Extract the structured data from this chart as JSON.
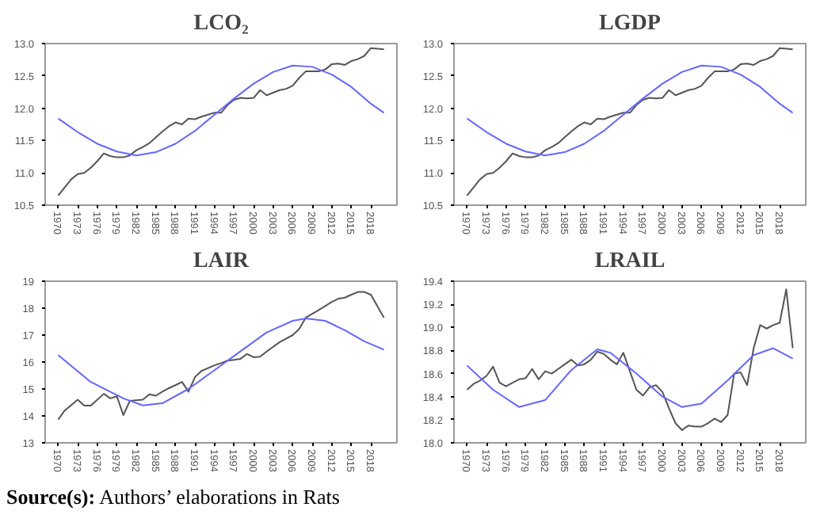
{
  "chart_data": [
    {
      "type": "line",
      "title": "LCO₂",
      "xlim": [
        1968,
        2022
      ],
      "ylim": [
        10.5,
        13.0
      ],
      "xticks": [
        1970,
        1973,
        1976,
        1979,
        1982,
        1985,
        1988,
        1991,
        1994,
        1997,
        2000,
        2003,
        2006,
        2009,
        2012,
        2015,
        2018
      ],
      "yticks": [
        {
          "value": 10.5,
          "label": "10.5"
        },
        {
          "value": 11.0,
          "label": "11.0"
        },
        {
          "value": 11.5,
          "label": "11.5"
        },
        {
          "value": 12.0,
          "label": "12.0"
        },
        {
          "value": 12.5,
          "label": "12.5"
        },
        {
          "value": 13.0,
          "label": "13.0"
        }
      ],
      "grid": false,
      "series": [
        {
          "color": "#555555",
          "x": [
            1970,
            1972,
            1973,
            1974,
            1975,
            1976,
            1977,
            1978,
            1979,
            1980,
            1981,
            1982,
            1983,
            1984,
            1985,
            1986,
            1987,
            1988,
            1989,
            1990,
            1991,
            1992,
            1993,
            1994,
            1995,
            1996,
            1997,
            1998,
            1999,
            2000,
            2001,
            2002,
            2003,
            2004,
            2005,
            2006,
            2007,
            2008,
            2009,
            2010,
            2011,
            2012,
            2013,
            2014,
            2015,
            2016,
            2017,
            2018,
            2019,
            2020
          ],
          "values": [
            10.65,
            10.9,
            10.98,
            11.0,
            11.08,
            11.18,
            11.3,
            11.26,
            11.24,
            11.24,
            11.27,
            11.35,
            11.4,
            11.46,
            11.55,
            11.64,
            11.72,
            11.78,
            11.75,
            11.84,
            11.83,
            11.87,
            11.9,
            11.93,
            11.93,
            12.05,
            12.13,
            12.16,
            12.15,
            12.16,
            12.28,
            12.2,
            12.24,
            12.28,
            12.3,
            12.35,
            12.47,
            12.57,
            12.57,
            12.57,
            12.6,
            12.68,
            12.69,
            12.67,
            12.73,
            12.76,
            12.81,
            12.93,
            12.92,
            12.91
          ]
        },
        {
          "color": "#6666ff",
          "x": [
            1970,
            1973,
            1976,
            1979,
            1982,
            1985,
            1988,
            1991,
            1994,
            1997,
            2000,
            2003,
            2006,
            2009,
            2012,
            2015,
            2018,
            2020
          ],
          "values": [
            11.84,
            11.63,
            11.45,
            11.33,
            11.27,
            11.32,
            11.45,
            11.65,
            11.9,
            12.15,
            12.38,
            12.56,
            12.66,
            12.64,
            12.52,
            12.33,
            12.07,
            11.93
          ]
        }
      ]
    },
    {
      "type": "line",
      "title": "LGDP",
      "xlim": [
        1968,
        2022
      ],
      "ylim": [
        10.5,
        13.0
      ],
      "xticks": [
        1970,
        1973,
        1976,
        1979,
        1982,
        1985,
        1988,
        1991,
        1994,
        1997,
        2000,
        2003,
        2006,
        2009,
        2012,
        2015,
        2018
      ],
      "yticks": [
        {
          "value": 10.5,
          "label": "10.5"
        },
        {
          "value": 11.0,
          "label": "11.0"
        },
        {
          "value": 11.5,
          "label": "11.5"
        },
        {
          "value": 12.0,
          "label": "12.0"
        },
        {
          "value": 12.5,
          "label": "12.5"
        },
        {
          "value": 13.0,
          "label": "13.0"
        }
      ],
      "grid": false,
      "series": [
        {
          "color": "#555555",
          "x": [
            1970,
            1972,
            1973,
            1974,
            1975,
            1976,
            1977,
            1978,
            1979,
            1980,
            1981,
            1982,
            1983,
            1984,
            1985,
            1986,
            1987,
            1988,
            1989,
            1990,
            1991,
            1992,
            1993,
            1994,
            1995,
            1996,
            1997,
            1998,
            1999,
            2000,
            2001,
            2002,
            2003,
            2004,
            2005,
            2006,
            2007,
            2008,
            2009,
            2010,
            2011,
            2012,
            2013,
            2014,
            2015,
            2016,
            2017,
            2018,
            2019,
            2020
          ],
          "values": [
            10.65,
            10.9,
            10.98,
            11.0,
            11.08,
            11.18,
            11.3,
            11.26,
            11.24,
            11.24,
            11.27,
            11.35,
            11.4,
            11.46,
            11.55,
            11.64,
            11.72,
            11.78,
            11.75,
            11.84,
            11.83,
            11.87,
            11.9,
            11.93,
            11.93,
            12.05,
            12.13,
            12.16,
            12.15,
            12.16,
            12.28,
            12.2,
            12.24,
            12.28,
            12.3,
            12.35,
            12.47,
            12.57,
            12.57,
            12.57,
            12.6,
            12.68,
            12.69,
            12.67,
            12.73,
            12.76,
            12.81,
            12.93,
            12.92,
            12.91
          ]
        },
        {
          "color": "#6666ff",
          "x": [
            1970,
            1973,
            1976,
            1979,
            1982,
            1985,
            1988,
            1991,
            1994,
            1997,
            2000,
            2003,
            2006,
            2009,
            2012,
            2015,
            2018,
            2020
          ],
          "values": [
            11.84,
            11.63,
            11.45,
            11.33,
            11.27,
            11.32,
            11.45,
            11.65,
            11.9,
            12.15,
            12.38,
            12.56,
            12.66,
            12.64,
            12.52,
            12.33,
            12.07,
            11.93
          ]
        }
      ]
    },
    {
      "type": "line",
      "title": "LAIR",
      "xlim": [
        1968,
        2022
      ],
      "ylim": [
        13,
        19
      ],
      "xticks": [
        1970,
        1973,
        1976,
        1979,
        1982,
        1985,
        1988,
        1991,
        1994,
        1997,
        2000,
        2003,
        2006,
        2009,
        2012,
        2015,
        2018
      ],
      "yticks": [
        13,
        14,
        15,
        16,
        17,
        18,
        19
      ],
      "grid": false,
      "series": [
        {
          "color": "#555555",
          "x": [
            1970,
            1971,
            1973,
            1974,
            1975,
            1977,
            1978,
            1979,
            1980,
            1981,
            1983,
            1984,
            1985,
            1986,
            1987,
            1988,
            1989,
            1990,
            1991,
            1992,
            1994,
            1995,
            1996,
            1997,
            1998,
            1999,
            2000,
            2001,
            2002,
            2004,
            2006,
            2007,
            2008,
            2010,
            2012,
            2013,
            2014,
            2015,
            2016,
            2017,
            2018,
            2020
          ],
          "values": [
            13.86,
            14.2,
            14.6,
            14.38,
            14.38,
            14.82,
            14.65,
            14.73,
            14.03,
            14.56,
            14.6,
            14.8,
            14.75,
            14.9,
            15.03,
            15.14,
            15.26,
            14.9,
            15.44,
            15.67,
            15.88,
            15.96,
            16.05,
            16.08,
            16.12,
            16.3,
            16.18,
            16.2,
            16.39,
            16.74,
            17.0,
            17.23,
            17.65,
            17.93,
            18.23,
            18.35,
            18.39,
            18.5,
            18.6,
            18.6,
            18.5,
            17.65
          ]
        },
        {
          "color": "#6666ff",
          "x": [
            1970,
            1975,
            1980,
            1983,
            1986,
            1990,
            1994,
            1998,
            2002,
            2006,
            2008,
            2011,
            2014,
            2017,
            2020
          ],
          "values": [
            16.26,
            15.26,
            14.65,
            14.39,
            14.47,
            15.0,
            15.7,
            16.4,
            17.1,
            17.53,
            17.62,
            17.53,
            17.18,
            16.77,
            16.46
          ]
        }
      ]
    },
    {
      "type": "line",
      "title": "LRAIL",
      "xlim": [
        1968,
        2022
      ],
      "ylim": [
        18.0,
        19.4
      ],
      "xticks": [
        1970,
        1973,
        1976,
        1979,
        1982,
        1985,
        1988,
        1991,
        1994,
        1997,
        2000,
        2003,
        2006,
        2009,
        2012,
        2015,
        2018
      ],
      "yticks": [
        {
          "value": 18.0,
          "label": "18.0"
        },
        {
          "value": 18.2,
          "label": "18.2"
        },
        {
          "value": 18.4,
          "label": "18.4"
        },
        {
          "value": 18.6,
          "label": "18.6"
        },
        {
          "value": 18.8,
          "label": "18.8"
        },
        {
          "value": 19.0,
          "label": "19.0"
        },
        {
          "value": 19.2,
          "label": "19.2"
        },
        {
          "value": 19.4,
          "label": "19.4"
        }
      ],
      "grid": false,
      "annotations": [
        "Source(s): Authors’ elaborations in Rats"
      ],
      "series": [
        {
          "color": "#555555",
          "x": [
            1970,
            1971,
            1972,
            1973,
            1974,
            1975,
            1976,
            1977,
            1978,
            1979,
            1980,
            1981,
            1982,
            1983,
            1984,
            1985,
            1986,
            1987,
            1988,
            1989,
            1990,
            1991,
            1992,
            1993,
            1994,
            1995,
            1996,
            1997,
            1998,
            1999,
            2000,
            2001,
            2002,
            2003,
            2004,
            2005,
            2006,
            2007,
            2008,
            2009,
            2010,
            2011,
            2012,
            2013,
            2014,
            2015,
            2016,
            2017,
            2018,
            2019,
            2020
          ],
          "values": [
            18.46,
            18.51,
            18.54,
            18.58,
            18.66,
            18.52,
            18.49,
            18.52,
            18.55,
            18.56,
            18.64,
            18.55,
            18.62,
            18.6,
            18.64,
            18.68,
            18.72,
            18.67,
            18.68,
            18.72,
            18.79,
            18.77,
            18.72,
            18.68,
            18.78,
            18.62,
            18.46,
            18.41,
            18.48,
            18.5,
            18.44,
            18.3,
            18.17,
            18.11,
            18.15,
            18.14,
            18.14,
            18.17,
            18.21,
            18.18,
            18.24,
            18.6,
            18.61,
            18.5,
            18.82,
            19.02,
            18.99,
            19.02,
            19.04,
            19.33,
            18.82
          ]
        },
        {
          "color": "#6666ff",
          "x": [
            1970,
            1974,
            1978,
            1982,
            1986,
            1990,
            1992,
            1996,
            2000,
            2003,
            2006,
            2010,
            2014,
            2017,
            2020
          ],
          "values": [
            18.67,
            18.46,
            18.31,
            18.37,
            18.63,
            18.81,
            18.78,
            18.6,
            18.4,
            18.31,
            18.34,
            18.54,
            18.76,
            18.82,
            18.73
          ]
        }
      ]
    }
  ]
}
